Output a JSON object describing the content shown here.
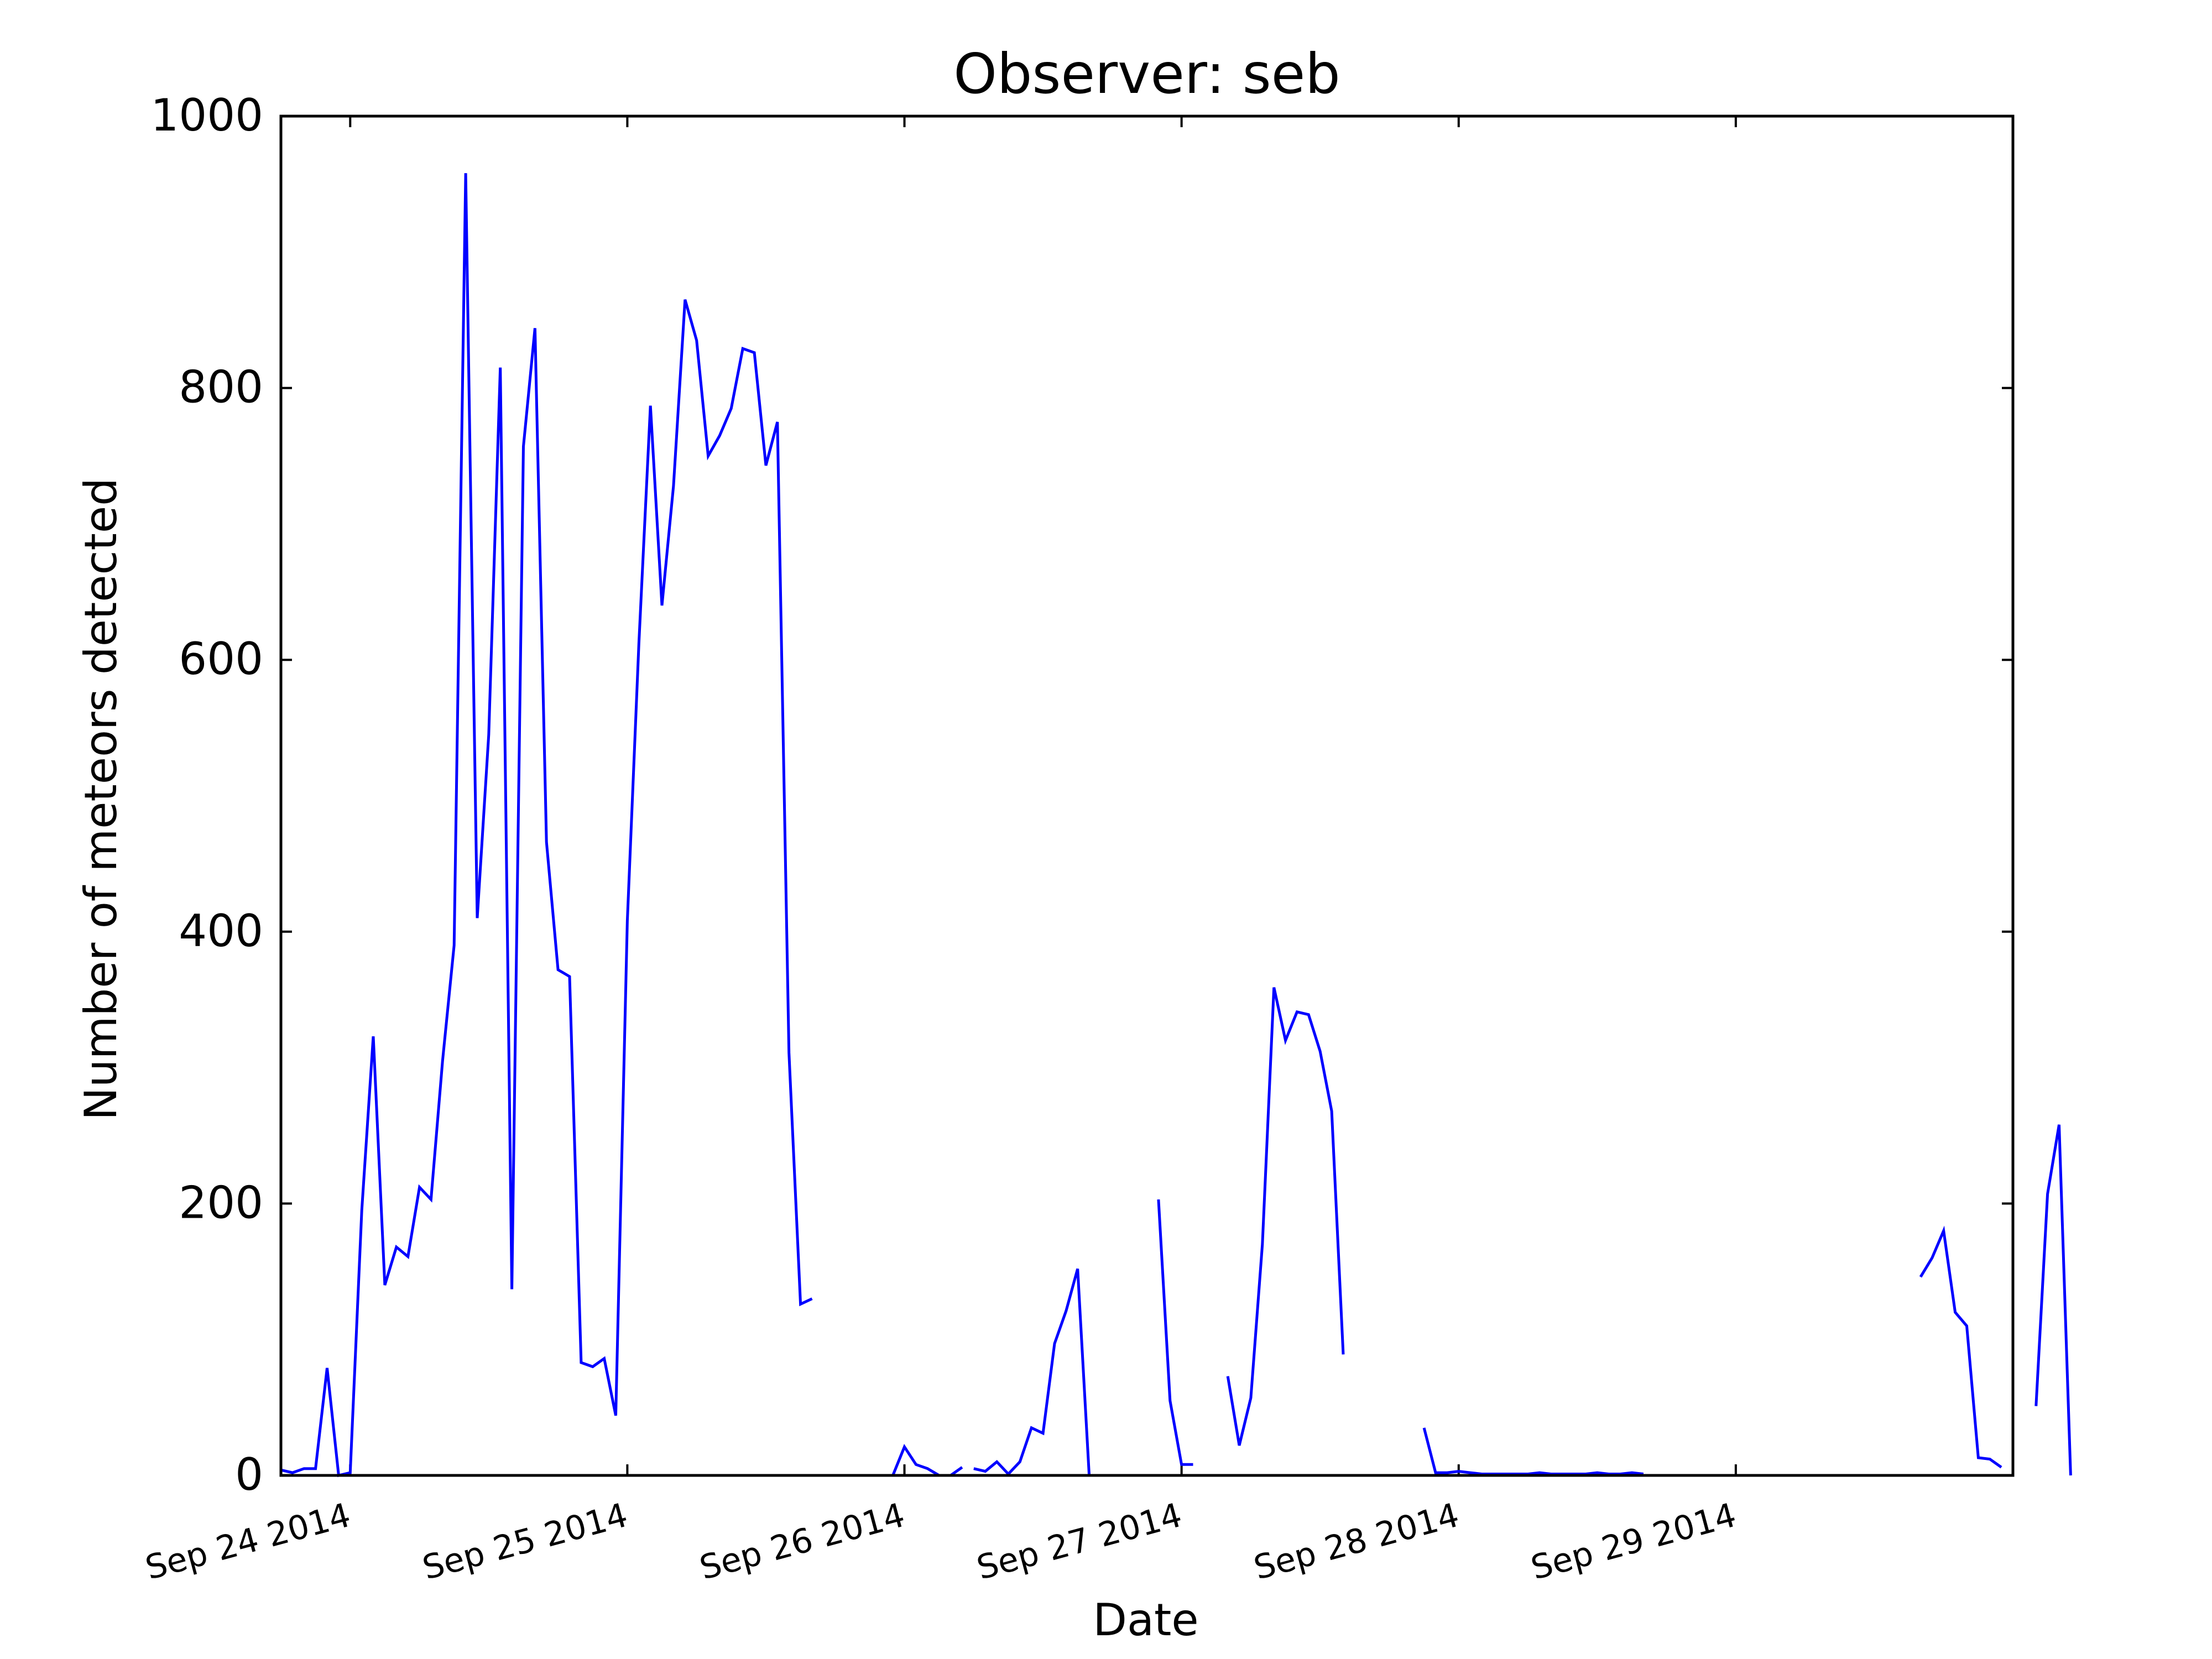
{
  "chart_data": {
    "type": "line",
    "title": "Observer: seb",
    "xlabel": "Date",
    "ylabel": "Number of meteors detected",
    "ylim": [
      0,
      1000
    ],
    "xlim": [
      "2014-09-23 18:00",
      "2014-09-30 00:00"
    ],
    "yticks": [
      {
        "value": 0,
        "label": "0"
      },
      {
        "value": 200,
        "label": "200"
      },
      {
        "value": 400,
        "label": "400"
      },
      {
        "value": 600,
        "label": "600"
      },
      {
        "value": 800,
        "label": "800"
      },
      {
        "value": 1000,
        "label": "1000"
      }
    ],
    "xticks": [
      {
        "value": "2014-09-24 00:00",
        "label": "Sep 24 2014"
      },
      {
        "value": "2014-09-25 00:00",
        "label": "Sep 25 2014"
      },
      {
        "value": "2014-09-26 00:00",
        "label": "Sep 26 2014"
      },
      {
        "value": "2014-09-27 00:00",
        "label": "Sep 27 2014"
      },
      {
        "value": "2014-09-28 00:00",
        "label": "Sep 28 2014"
      },
      {
        "value": "2014-09-29 00:00",
        "label": "Sep 29 2014"
      }
    ],
    "grid": false,
    "line_color": "#0000ff",
    "series": [
      {
        "segments": [
          [
            [
              "2014-09-23 18:00",
              4
            ],
            [
              "2014-09-23 19:00",
              2
            ],
            [
              "2014-09-23 20:00",
              5
            ],
            [
              "2014-09-23 21:00",
              5
            ],
            [
              "2014-09-23 22:00",
              79
            ],
            [
              "2014-09-23 23:00",
              0
            ],
            [
              "2014-09-24 00:00",
              2
            ],
            [
              "2014-09-24 01:00",
              195
            ],
            [
              "2014-09-24 02:00",
              323
            ],
            [
              "2014-09-24 03:00",
              140
            ],
            [
              "2014-09-24 04:00",
              168
            ],
            [
              "2014-09-24 05:00",
              161
            ],
            [
              "2014-09-24 06:00",
              212
            ],
            [
              "2014-09-24 07:00",
              203
            ],
            [
              "2014-09-24 08:00",
              305
            ],
            [
              "2014-09-24 09:00",
              390
            ],
            [
              "2014-09-24 10:00",
              958
            ],
            [
              "2014-09-24 11:00",
              410
            ],
            [
              "2014-09-24 12:00",
              545
            ],
            [
              "2014-09-24 13:00",
              815
            ],
            [
              "2014-09-24 14:00",
              137
            ],
            [
              "2014-09-24 15:00",
              757
            ],
            [
              "2014-09-24 16:00",
              844
            ],
            [
              "2014-09-24 17:00",
              466
            ],
            [
              "2014-09-24 18:00",
              372
            ],
            [
              "2014-09-24 19:00",
              367
            ],
            [
              "2014-09-24 20:00",
              83
            ],
            [
              "2014-09-24 21:00",
              80
            ],
            [
              "2014-09-24 22:00",
              86
            ],
            [
              "2014-09-24 23:00",
              44
            ],
            [
              "2014-09-25 00:00",
              408
            ],
            [
              "2014-09-25 01:00",
              612
            ],
            [
              "2014-09-25 02:00",
              787
            ],
            [
              "2014-09-25 03:00",
              640
            ],
            [
              "2014-09-25 04:00",
              728
            ],
            [
              "2014-09-25 05:00",
              865
            ],
            [
              "2014-09-25 06:00",
              835
            ],
            [
              "2014-09-25 07:00",
              750
            ],
            [
              "2014-09-25 08:00",
              765
            ],
            [
              "2014-09-25 09:00",
              785
            ],
            [
              "2014-09-25 10:00",
              829
            ],
            [
              "2014-09-25 11:00",
              826
            ],
            [
              "2014-09-25 12:00",
              743
            ],
            [
              "2014-09-25 13:00",
              775
            ],
            [
              "2014-09-25 14:00",
              311
            ],
            [
              "2014-09-25 15:00",
              126
            ],
            [
              "2014-09-25 16:00",
              130
            ]
          ],
          [
            [
              "2014-09-25 23:00",
              0
            ],
            [
              "2014-09-26 00:00",
              21
            ],
            [
              "2014-09-26 01:00",
              8
            ],
            [
              "2014-09-26 02:00",
              5
            ],
            [
              "2014-09-26 03:00",
              0
            ],
            [
              "2014-09-26 04:00",
              0
            ],
            [
              "2014-09-26 05:00",
              6
            ]
          ],
          [
            [
              "2014-09-26 06:00",
              5
            ],
            [
              "2014-09-26 07:00",
              3
            ],
            [
              "2014-09-26 08:00",
              10
            ],
            [
              "2014-09-26 09:00",
              1
            ],
            [
              "2014-09-26 10:00",
              10
            ],
            [
              "2014-09-26 11:00",
              35
            ],
            [
              "2014-09-26 12:00",
              31
            ],
            [
              "2014-09-26 13:00",
              97
            ],
            [
              "2014-09-26 14:00",
              121
            ],
            [
              "2014-09-26 15:00",
              152
            ],
            [
              "2014-09-26 16:00",
              0
            ]
          ],
          [
            [
              "2014-09-26 22:00",
              203
            ],
            [
              "2014-09-26 23:00",
              55
            ],
            [
              "2014-09-27 00:00",
              8
            ],
            [
              "2014-09-27 01:00",
              8
            ]
          ],
          [
            [
              "2014-09-27 04:00",
              73
            ],
            [
              "2014-09-27 05:00",
              22
            ],
            [
              "2014-09-27 06:00",
              57
            ],
            [
              "2014-09-27 07:00",
              170
            ],
            [
              "2014-09-27 08:00",
              359
            ],
            [
              "2014-09-27 09:00",
              320
            ],
            [
              "2014-09-27 10:00",
              341
            ],
            [
              "2014-09-27 11:00",
              339
            ],
            [
              "2014-09-27 12:00",
              312
            ],
            [
              "2014-09-27 13:00",
              268
            ],
            [
              "2014-09-27 14:00",
              89
            ]
          ],
          [
            [
              "2014-09-27 21:00",
              35
            ],
            [
              "2014-09-27 22:00",
              2
            ],
            [
              "2014-09-27 23:00",
              2
            ],
            [
              "2014-09-28 00:00",
              3
            ],
            [
              "2014-09-28 01:00",
              2
            ],
            [
              "2014-09-28 02:00",
              1
            ],
            [
              "2014-09-28 03:00",
              1
            ],
            [
              "2014-09-28 04:00",
              1
            ],
            [
              "2014-09-28 05:00",
              1
            ],
            [
              "2014-09-28 06:00",
              1
            ],
            [
              "2014-09-28 07:00",
              2
            ],
            [
              "2014-09-28 08:00",
              1
            ],
            [
              "2014-09-28 09:00",
              1
            ],
            [
              "2014-09-28 10:00",
              1
            ],
            [
              "2014-09-28 11:00",
              1
            ],
            [
              "2014-09-28 12:00",
              2
            ],
            [
              "2014-09-28 13:00",
              1
            ],
            [
              "2014-09-28 14:00",
              1
            ],
            [
              "2014-09-28 15:00",
              2
            ],
            [
              "2014-09-28 16:00",
              1
            ]
          ],
          [
            [
              "2014-09-29 16:00",
              146
            ],
            [
              "2014-09-29 17:00",
              160
            ],
            [
              "2014-09-29 18:00",
              180
            ],
            [
              "2014-09-29 19:00",
              120
            ],
            [
              "2014-09-29 20:00",
              110
            ],
            [
              "2014-09-29 21:00",
              13
            ],
            [
              "2014-09-29 22:00",
              12
            ],
            [
              "2014-09-29 23:00",
              6
            ]
          ],
          [
            [
              "2014-09-30 02:00",
              51
            ],
            [
              "2014-09-30 03:00",
              207
            ],
            [
              "2014-09-30 04:00",
              258
            ],
            [
              "2014-09-30 05:00",
              0
            ]
          ]
        ]
      }
    ]
  }
}
